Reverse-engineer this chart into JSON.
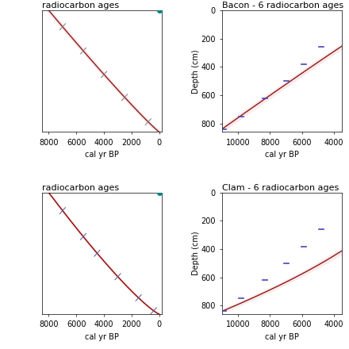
{
  "panels": [
    {
      "title": "radiocarbon ages",
      "xlabel": "cal yr BP",
      "ylabel": "",
      "xlim": [
        8500,
        -200
      ],
      "ylim": [
        0,
        1.0
      ],
      "show_yticks": false,
      "line_color": "#8B1A1A",
      "shade_color": "#f4c2c2",
      "dot_color": "#008080",
      "xticks": [
        8000,
        6000,
        4000,
        2000,
        0
      ],
      "curve_type": "linear_ticks",
      "rc_ages": [
        7000,
        5500,
        4000,
        2500,
        800
      ],
      "tick_color": "#888888"
    },
    {
      "title": "Bacon - 6 radiocarbon ages",
      "xlabel": "cal yr BP",
      "ylabel": "Depth (cm)",
      "xlim": [
        11000,
        3500
      ],
      "ylim": [
        860,
        0
      ],
      "show_yticks": true,
      "yticks": [
        0,
        200,
        400,
        600,
        800
      ],
      "line_color": "#8B1A1A",
      "shade_color": "#f4c2c2",
      "xticks": [
        10000,
        8000,
        6000,
        4000
      ],
      "curve_type": "bacon",
      "rc_depths": [
        840,
        750,
        620,
        500,
        380,
        260
      ],
      "rc_ages": [
        10900,
        9800,
        8300,
        7000,
        5900,
        4800
      ],
      "rc_err": [
        150,
        150,
        150,
        150,
        150,
        150
      ],
      "rc_color": "#4444bb"
    },
    {
      "title": "radiocarbon ages",
      "xlabel": "cal yr BP",
      "ylabel": "",
      "xlim": [
        8500,
        -200
      ],
      "ylim": [
        0,
        1.0
      ],
      "show_yticks": false,
      "line_color": "#8B0000",
      "shade_color": "#f4c2c2",
      "dot_color": "#008080",
      "xticks": [
        8000,
        6000,
        4000,
        2000,
        0
      ],
      "curve_type": "clam_left",
      "rc_ages": [
        7000,
        5500,
        4500,
        3000,
        1500,
        400
      ],
      "tick_color": "#6666aa"
    },
    {
      "title": "Clam - 6 radiocarbon ages",
      "xlabel": "cal yr BP",
      "ylabel": "Depth (cm)",
      "xlim": [
        11000,
        3500
      ],
      "ylim": [
        860,
        0
      ],
      "show_yticks": true,
      "yticks": [
        0,
        200,
        400,
        600,
        800
      ],
      "line_color": "#8B1A1A",
      "shade_color": "#f4c2c2",
      "xticks": [
        10000,
        8000,
        6000,
        4000
      ],
      "curve_type": "clam",
      "rc_depths": [
        840,
        750,
        620,
        500,
        380,
        260
      ],
      "rc_ages": [
        10900,
        9800,
        8300,
        7000,
        5900,
        4800
      ],
      "rc_err": [
        150,
        150,
        150,
        150,
        150,
        150
      ],
      "rc_color": "#4444bb"
    }
  ],
  "bg_color": "#ffffff",
  "tick_label_fontsize": 7,
  "title_fontsize": 8,
  "axis_label_fontsize": 7
}
